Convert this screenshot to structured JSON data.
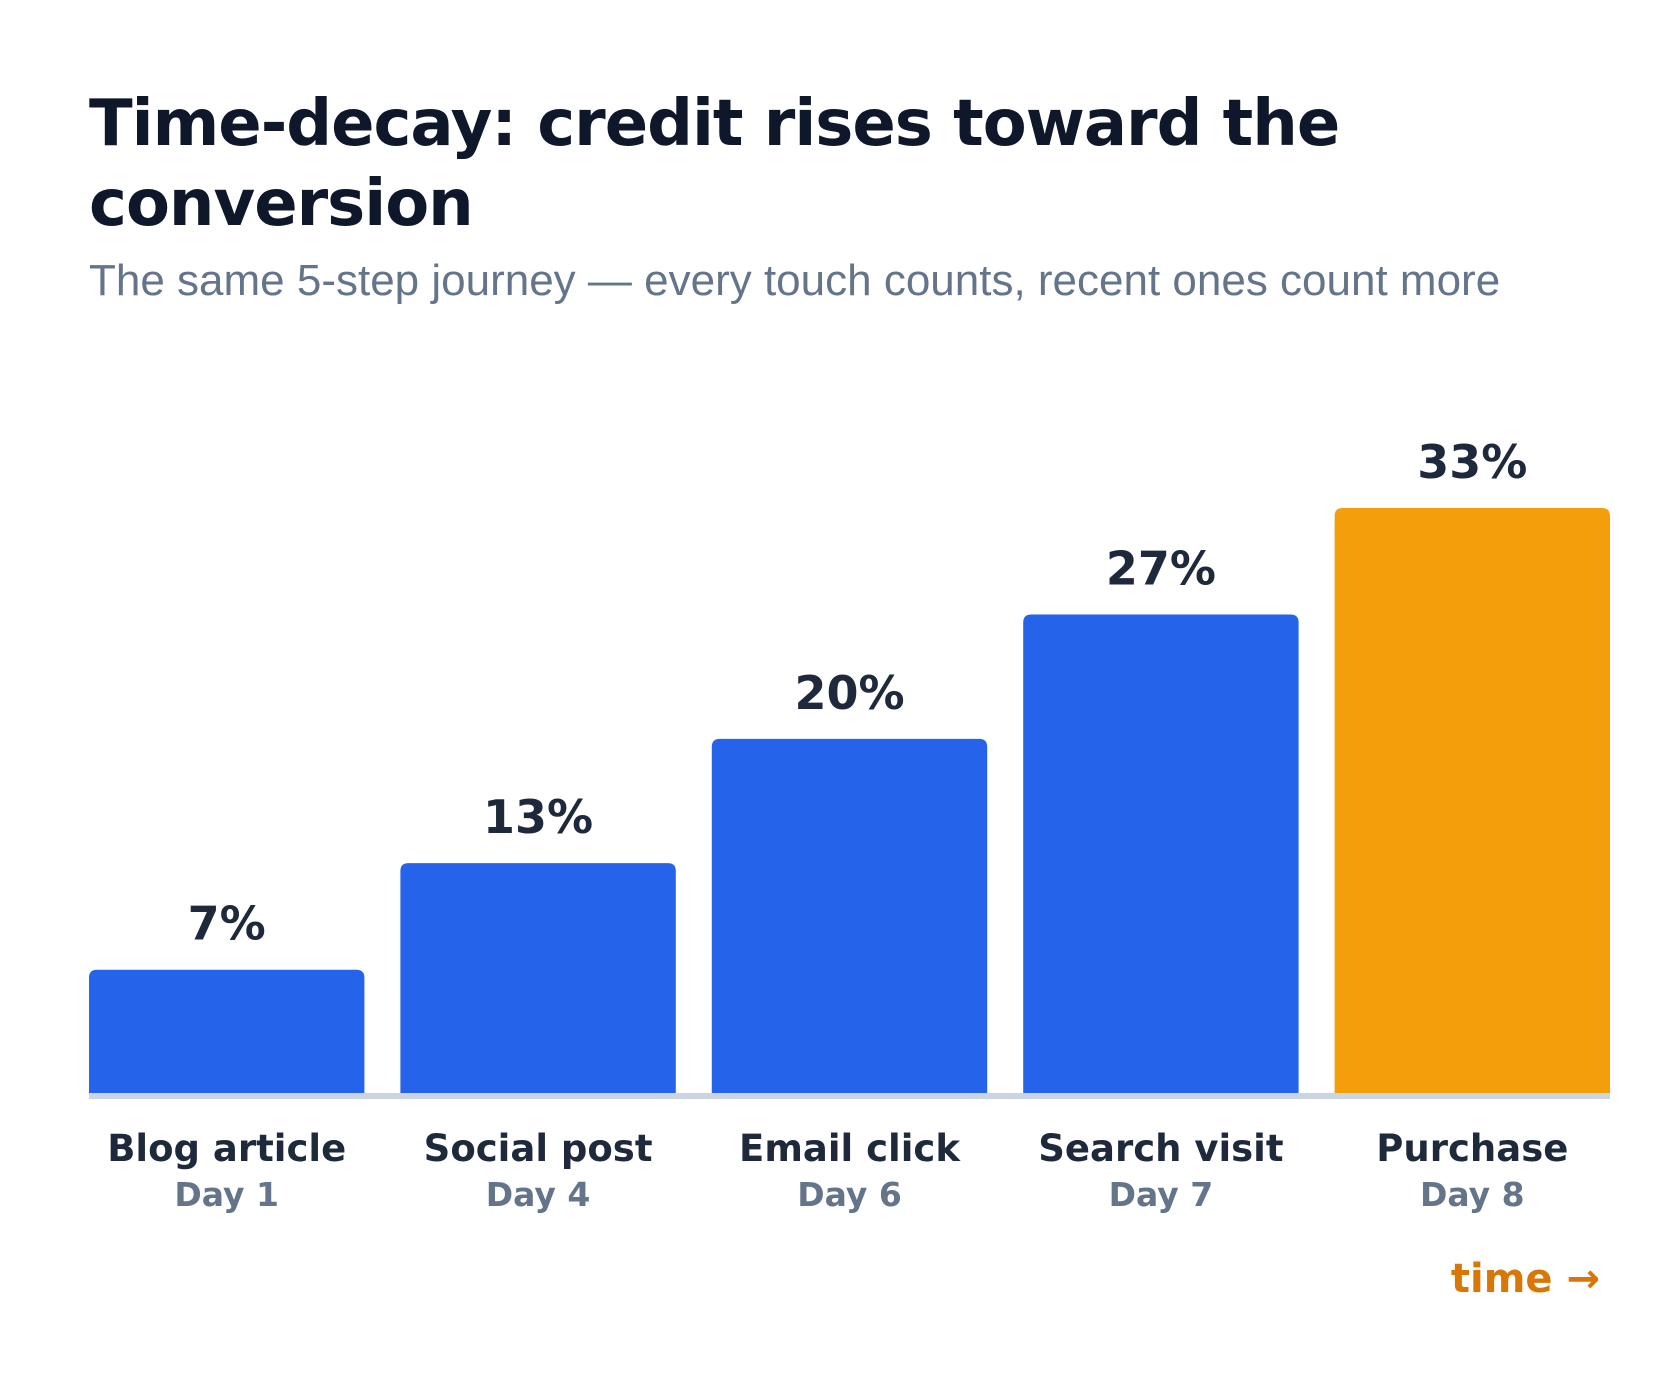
{
  "title": "Time-decay: credit rises toward the conversion",
  "subtitle": "The same 5-step journey — every touch counts, recent ones count more",
  "axis_note": "time →",
  "colors": {
    "bar": "#2563eb",
    "highlight": "#f59e0b",
    "baseline": "#cbd5e1",
    "label": "#1e293b",
    "sublabel": "#64748b",
    "accent_text": "#d97706"
  },
  "chart_data": {
    "type": "bar",
    "categories": [
      "Blog article",
      "Social post",
      "Email click",
      "Search visit",
      "Purchase"
    ],
    "sublabels": [
      "Day 1",
      "Day 4",
      "Day 6",
      "Day 7",
      "Day 8"
    ],
    "values": [
      7,
      13,
      20,
      27,
      33
    ],
    "value_labels": [
      "7%",
      "13%",
      "20%",
      "27%",
      "33%"
    ],
    "highlight_index": 4,
    "ylim": [
      0,
      33
    ],
    "grid": false,
    "legend": "none"
  }
}
